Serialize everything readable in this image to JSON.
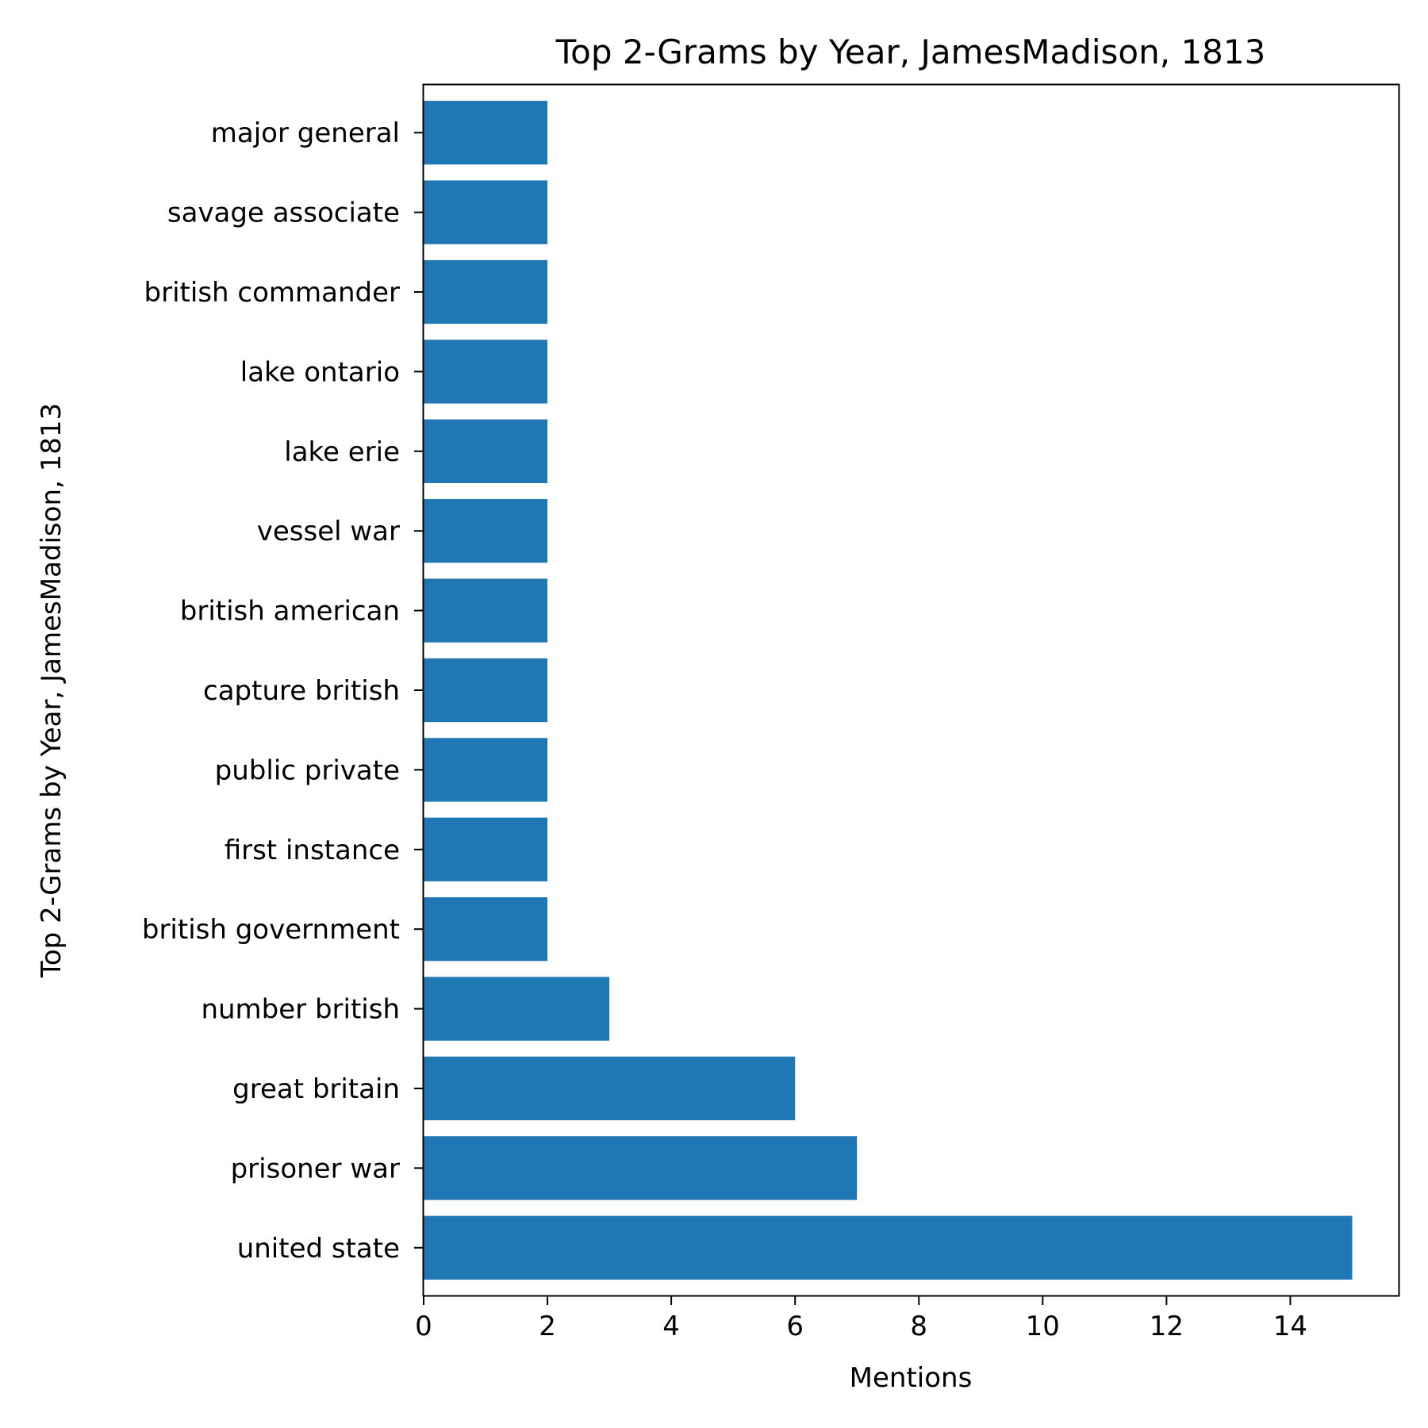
{
  "chart_data": {
    "type": "bar",
    "orientation": "horizontal",
    "title": "Top 2-Grams by Year, JamesMadison, 1813",
    "xlabel": "Mentions",
    "ylabel": "Top 2-Grams by Year, JamesMadison, 1813",
    "categories": [
      "united state",
      "prisoner war",
      "great britain",
      "number british",
      "british government",
      "first instance",
      "public private",
      "capture british",
      "british american",
      "vessel war",
      "lake erie",
      "lake ontario",
      "british commander",
      "savage associate",
      "major general"
    ],
    "values": [
      15,
      7,
      6,
      3,
      2,
      2,
      2,
      2,
      2,
      2,
      2,
      2,
      2,
      2,
      2
    ],
    "xlim": [
      0,
      15.75
    ],
    "xticks": [
      0,
      2,
      4,
      6,
      8,
      10,
      12,
      14
    ],
    "grid": false,
    "legend": "none",
    "bar_color": "#1f77b4"
  }
}
